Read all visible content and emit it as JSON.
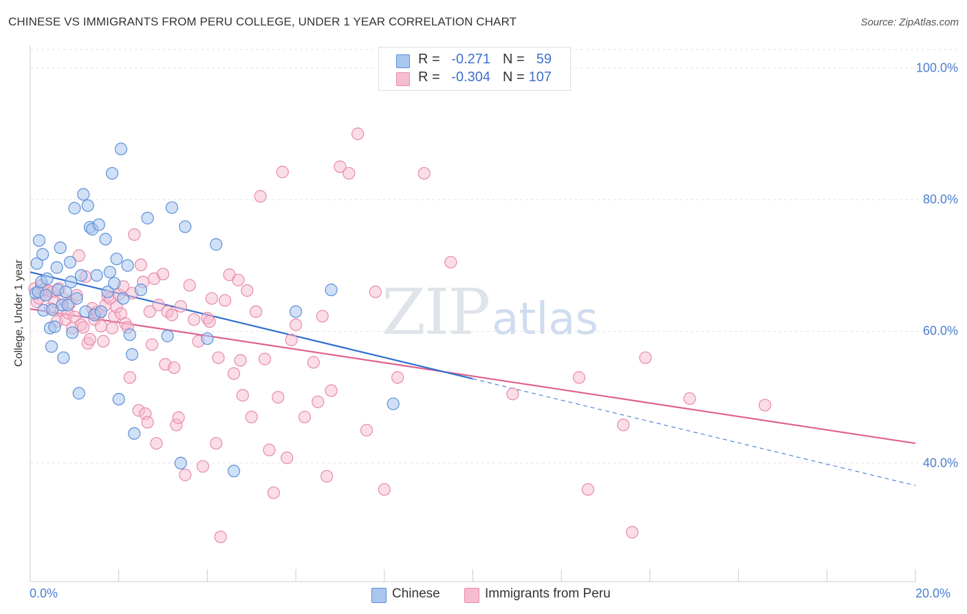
{
  "header": {
    "title": "CHINESE VS IMMIGRANTS FROM PERU COLLEGE, UNDER 1 YEAR CORRELATION CHART",
    "source": "Source: ZipAtlas.com"
  },
  "watermark": {
    "zip": "ZIP",
    "atlas": "atlas"
  },
  "legend": {
    "rows": [
      {
        "r_label": "R =",
        "r_value": "-0.271",
        "n_label": "N =",
        "n_value": "59"
      },
      {
        "r_label": "R =",
        "r_value": "-0.304",
        "n_label": "N =",
        "n_value": "107"
      }
    ]
  },
  "colors": {
    "chinese_fill": "#a9c6ee",
    "chinese_stroke": "#5b8fd8",
    "chinese_line": "#2f6fcf",
    "peru_fill": "#f6bcd0",
    "peru_stroke": "#e889a9",
    "peru_line": "#e0608e",
    "grid": "#e3e3e3",
    "axis_label": "#4a7fd0"
  },
  "chart_data": {
    "type": "scatter",
    "title": "CHINESE VS IMMIGRANTS FROM PERU COLLEGE, UNDER 1 YEAR CORRELATION CHART",
    "xlabel": "",
    "ylabel": "College, Under 1 year",
    "xlim": [
      0,
      20
    ],
    "ylim": [
      22,
      103
    ],
    "x_tick_labels": [
      "0.0%",
      "20.0%"
    ],
    "y_ticks": [
      40,
      60,
      80,
      100
    ],
    "y_tick_labels": [
      "40.0%",
      "60.0%",
      "80.0%",
      "100.0%"
    ],
    "grid": true,
    "legend_position": "top-center",
    "series": [
      {
        "name": "Chinese",
        "stats": {
          "R": -0.271,
          "N": 59
        },
        "trend": {
          "x": [
            0,
            10
          ],
          "y": [
            69.0,
            52.8
          ],
          "dashed_extension": {
            "x": [
              10,
              20
            ],
            "y": [
              52.8,
              36.6
            ]
          }
        },
        "points": [
          [
            0.12,
            65.8
          ],
          [
            0.15,
            70.3
          ],
          [
            0.18,
            66.0
          ],
          [
            0.2,
            73.8
          ],
          [
            0.25,
            67.5
          ],
          [
            0.28,
            71.7
          ],
          [
            0.3,
            63.2
          ],
          [
            0.35,
            65.5
          ],
          [
            0.38,
            68.0
          ],
          [
            0.45,
            60.5
          ],
          [
            0.48,
            57.7
          ],
          [
            0.5,
            63.3
          ],
          [
            0.55,
            60.7
          ],
          [
            0.6,
            69.7
          ],
          [
            0.62,
            66.3
          ],
          [
            0.68,
            72.7
          ],
          [
            0.72,
            64.0
          ],
          [
            0.75,
            56.0
          ],
          [
            0.8,
            66.0
          ],
          [
            0.85,
            64.0
          ],
          [
            0.9,
            70.5
          ],
          [
            0.92,
            67.5
          ],
          [
            0.95,
            59.8
          ],
          [
            1.0,
            78.7
          ],
          [
            1.05,
            65.0
          ],
          [
            1.1,
            50.6
          ],
          [
            1.15,
            68.5
          ],
          [
            1.2,
            80.8
          ],
          [
            1.25,
            63.0
          ],
          [
            1.3,
            79.1
          ],
          [
            1.35,
            75.8
          ],
          [
            1.4,
            75.5
          ],
          [
            1.45,
            62.5
          ],
          [
            1.5,
            68.5
          ],
          [
            1.55,
            76.2
          ],
          [
            1.6,
            63.0
          ],
          [
            1.7,
            74.0
          ],
          [
            1.75,
            66.0
          ],
          [
            1.8,
            69.0
          ],
          [
            1.85,
            84.0
          ],
          [
            1.9,
            67.3
          ],
          [
            1.95,
            71.0
          ],
          [
            2.0,
            49.7
          ],
          [
            2.05,
            87.7
          ],
          [
            2.1,
            65.0
          ],
          [
            2.2,
            70.0
          ],
          [
            2.25,
            59.5
          ],
          [
            2.3,
            56.5
          ],
          [
            2.35,
            44.5
          ],
          [
            2.5,
            66.3
          ],
          [
            2.65,
            77.2
          ],
          [
            3.1,
            59.3
          ],
          [
            3.2,
            78.8
          ],
          [
            3.4,
            40.0
          ],
          [
            3.5,
            75.9
          ],
          [
            4.0,
            58.9
          ],
          [
            4.2,
            73.2
          ],
          [
            4.6,
            38.8
          ],
          [
            6.0,
            63.0
          ],
          [
            6.8,
            66.3
          ],
          [
            8.2,
            49.0
          ]
        ]
      },
      {
        "name": "Immigrants from Peru",
        "stats": {
          "R": -0.304,
          "N": 107
        },
        "trend": {
          "x": [
            0,
            20
          ],
          "y": [
            63.4,
            43.0
          ]
        },
        "points": [
          [
            0.1,
            66.5
          ],
          [
            0.15,
            64.5
          ],
          [
            0.2,
            65.0
          ],
          [
            0.25,
            67.0
          ],
          [
            0.3,
            66.3
          ],
          [
            0.35,
            65.5
          ],
          [
            0.4,
            66.2
          ],
          [
            0.45,
            63.5
          ],
          [
            0.5,
            66.0
          ],
          [
            0.55,
            64.5
          ],
          [
            0.6,
            61.5
          ],
          [
            0.65,
            66.5
          ],
          [
            0.7,
            63.2
          ],
          [
            0.75,
            65.0
          ],
          [
            0.8,
            61.8
          ],
          [
            0.85,
            62.8
          ],
          [
            0.9,
            64.3
          ],
          [
            0.95,
            60.5
          ],
          [
            1.0,
            62.2
          ],
          [
            1.05,
            65.5
          ],
          [
            1.1,
            71.5
          ],
          [
            1.15,
            61.0
          ],
          [
            1.2,
            60.6
          ],
          [
            1.25,
            68.3
          ],
          [
            1.3,
            58.2
          ],
          [
            1.35,
            58.8
          ],
          [
            1.4,
            63.5
          ],
          [
            1.45,
            61.8
          ],
          [
            1.5,
            62.9
          ],
          [
            1.55,
            62.6
          ],
          [
            1.6,
            60.8
          ],
          [
            1.65,
            58.5
          ],
          [
            1.7,
            64.0
          ],
          [
            1.75,
            65.3
          ],
          [
            1.8,
            65.0
          ],
          [
            1.85,
            60.5
          ],
          [
            1.9,
            62.3
          ],
          [
            1.95,
            63.7
          ],
          [
            2.0,
            65.6
          ],
          [
            2.05,
            62.7
          ],
          [
            2.1,
            66.8
          ],
          [
            2.15,
            61.2
          ],
          [
            2.2,
            60.6
          ],
          [
            2.25,
            53.0
          ],
          [
            2.3,
            65.8
          ],
          [
            2.35,
            74.7
          ],
          [
            2.45,
            48.0
          ],
          [
            2.5,
            70.1
          ],
          [
            2.55,
            67.5
          ],
          [
            2.6,
            47.5
          ],
          [
            2.65,
            46.2
          ],
          [
            2.7,
            63.0
          ],
          [
            2.75,
            58.0
          ],
          [
            2.8,
            68.0
          ],
          [
            2.85,
            43.0
          ],
          [
            2.9,
            64.0
          ],
          [
            3.0,
            68.7
          ],
          [
            3.05,
            55.0
          ],
          [
            3.1,
            63.0
          ],
          [
            3.2,
            62.5
          ],
          [
            3.25,
            54.5
          ],
          [
            3.3,
            45.8
          ],
          [
            3.35,
            46.9
          ],
          [
            3.4,
            63.8
          ],
          [
            3.5,
            38.2
          ],
          [
            3.6,
            67.0
          ],
          [
            3.7,
            61.8
          ],
          [
            3.8,
            58.5
          ],
          [
            3.9,
            39.5
          ],
          [
            4.0,
            62.0
          ],
          [
            4.05,
            61.5
          ],
          [
            4.1,
            65.0
          ],
          [
            4.2,
            43.0
          ],
          [
            4.25,
            56.0
          ],
          [
            4.3,
            28.8
          ],
          [
            4.4,
            64.7
          ],
          [
            4.5,
            68.6
          ],
          [
            4.6,
            53.6
          ],
          [
            4.7,
            67.8
          ],
          [
            4.75,
            55.6
          ],
          [
            4.8,
            50.3
          ],
          [
            4.9,
            66.2
          ],
          [
            5.0,
            47.0
          ],
          [
            5.1,
            63.0
          ],
          [
            5.2,
            80.5
          ],
          [
            5.3,
            55.8
          ],
          [
            5.4,
            42.0
          ],
          [
            5.5,
            35.5
          ],
          [
            5.6,
            50.0
          ],
          [
            5.7,
            84.2
          ],
          [
            5.8,
            40.8
          ],
          [
            5.9,
            58.7
          ],
          [
            6.0,
            61.0
          ],
          [
            6.2,
            47.0
          ],
          [
            6.4,
            55.3
          ],
          [
            6.5,
            49.3
          ],
          [
            6.6,
            62.3
          ],
          [
            6.7,
            38.0
          ],
          [
            6.8,
            51.0
          ],
          [
            7.0,
            85.0
          ],
          [
            7.2,
            84.0
          ],
          [
            7.4,
            90.0
          ],
          [
            7.6,
            45.0
          ],
          [
            7.8,
            66.0
          ],
          [
            8.0,
            36.0
          ],
          [
            8.3,
            53.0
          ],
          [
            8.9,
            84.0
          ],
          [
            9.5,
            70.5
          ],
          [
            10.9,
            50.5
          ],
          [
            12.4,
            53.0
          ],
          [
            12.6,
            36.0
          ],
          [
            13.4,
            45.8
          ],
          [
            13.6,
            29.5
          ],
          [
            13.9,
            56.0
          ],
          [
            14.9,
            49.8
          ],
          [
            16.6,
            48.8
          ]
        ]
      }
    ]
  }
}
